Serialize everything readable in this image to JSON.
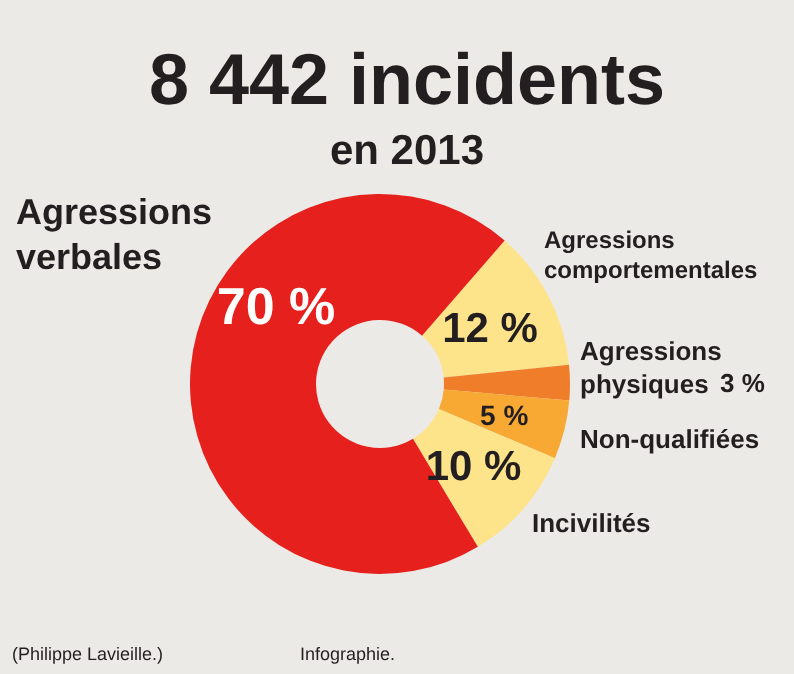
{
  "chart_data": {
    "type": "donut",
    "title": "8 442 incidents",
    "subtitle": "en 2013",
    "categories": [
      "Agressions comportementales",
      "Agressions physiques",
      "Non-qualifiées",
      "Incivilités",
      "Agressions verbales"
    ],
    "values": [
      12,
      3,
      5,
      10,
      70
    ],
    "colors": [
      "#fde38a",
      "#ef7d2a",
      "#f7a934",
      "#fde38a",
      "#e6211d"
    ],
    "value_labels": [
      "12 %",
      "3 %",
      "5 %",
      "10 %",
      "70 %"
    ],
    "annotations": [
      "(Philippe Lavieille.)",
      "Infographie."
    ]
  }
}
